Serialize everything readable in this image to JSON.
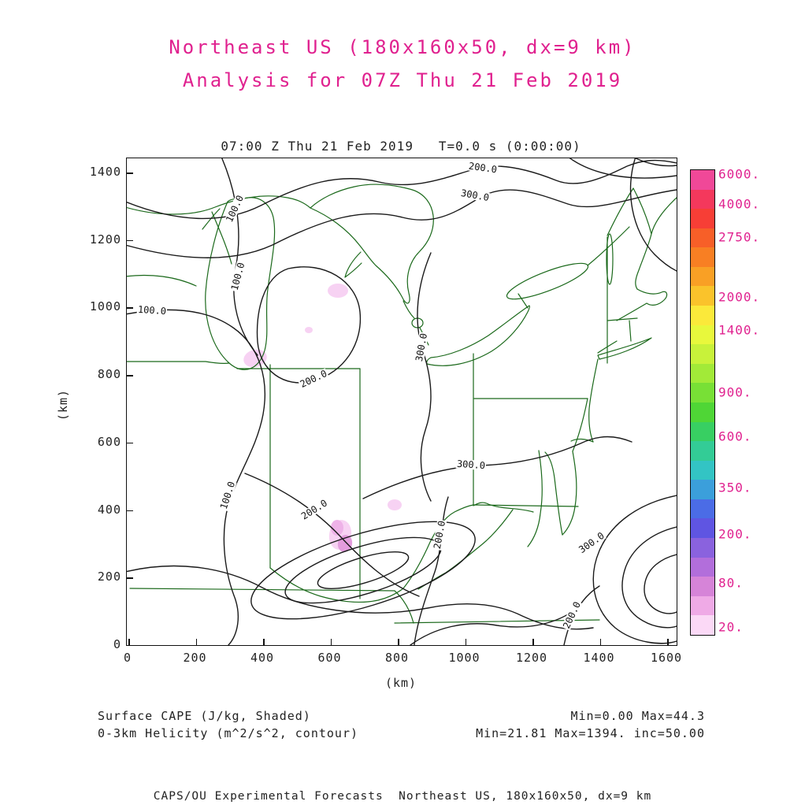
{
  "header": {
    "title_line1": "Northeast US (180x160x50, dx=9 km)",
    "title_line2": "Analysis for 07Z Thu 21 Feb 2019"
  },
  "plot": {
    "header": "07:00 Z Thu 21 Feb 2019   T=0.0 s (0:00:00)",
    "xlabel": "(km)",
    "ylabel": "(km)"
  },
  "captions": {
    "shaded": "Surface CAPE (J/kg, Shaded)",
    "contour": "0-3km Helicity (m^2/s^2, contour)",
    "shaded_stats": "Min=0.00 Max=44.3",
    "contour_stats": "Min=21.81 Max=1394. inc=50.00"
  },
  "footer": {
    "text": "CAPS/OU Experimental Forecasts  Northeast US, 180x160x50, dx=9 km"
  },
  "colors": {
    "title_magenta": "#e0218f",
    "map_outline_green": "#1b691b",
    "contour_black": "#1a1a1a",
    "cape_pale_pink": "#f7d2f3",
    "cape_pink": "#e39ddd"
  },
  "chart_data": {
    "type": "heatmap",
    "title": "07:00 Z Thu 21 Feb 2019   T=0.0 s (0:00:00)",
    "subtitle": "Northeast US (180x160x50, dx=9 km) Analysis for 07Z Thu 21 Feb 2019",
    "xlabel": "(km)",
    "ylabel": "(km)",
    "xlim": [
      0,
      1600
    ],
    "ylim": [
      0,
      1400
    ],
    "x_ticks": [
      0,
      200,
      400,
      600,
      800,
      1000,
      1200,
      1400,
      1600
    ],
    "y_ticks": [
      0,
      200,
      400,
      600,
      800,
      1000,
      1200,
      1400
    ],
    "grid": false,
    "shaded_field": {
      "name": "Surface CAPE",
      "units": "J/kg",
      "min": 0.0,
      "max": 44.3,
      "shading_levels_visible": [
        20,
        80
      ]
    },
    "contour_field": {
      "name": "0-3km Helicity",
      "units": "m^2/s^2",
      "min": 21.81,
      "max": 1394,
      "interval": 50.0,
      "labeled_levels": [
        100.0,
        200.0,
        300.0
      ]
    },
    "contour_labels": [
      {
        "text": "200.0",
        "x": 452,
        "y": 12,
        "rot": 8
      },
      {
        "text": "300.0",
        "x": 442,
        "y": 47,
        "rot": 10
      },
      {
        "text": "100.0",
        "x": 137,
        "y": 64,
        "rot": -65
      },
      {
        "text": "100.0",
        "x": 32,
        "y": 193,
        "rot": 4
      },
      {
        "text": "100.0",
        "x": 141,
        "y": 150,
        "rot": -75
      },
      {
        "text": "200.0",
        "x": 237,
        "y": 280,
        "rot": -25
      },
      {
        "text": "300.0",
        "x": 374,
        "y": 240,
        "rot": -80
      },
      {
        "text": "300.0",
        "x": 437,
        "y": 389,
        "rot": 4
      },
      {
        "text": "100.0",
        "x": 128,
        "y": 428,
        "rot": -72
      },
      {
        "text": "200.0",
        "x": 238,
        "y": 446,
        "rot": -32
      },
      {
        "text": "200.0",
        "x": 397,
        "y": 478,
        "rot": -80
      },
      {
        "text": "300.0",
        "x": 590,
        "y": 488,
        "rot": -35
      },
      {
        "text": "200.0",
        "x": 565,
        "y": 580,
        "rot": -65
      }
    ],
    "colorbar": {
      "labels": [
        "6000.",
        "4000.",
        "2750.",
        "2000.",
        "1400.",
        "900.",
        "600.",
        "350.",
        "200.",
        "80.",
        "20."
      ],
      "fractions": [
        0.01,
        0.075,
        0.145,
        0.275,
        0.345,
        0.48,
        0.575,
        0.685,
        0.785,
        0.89,
        0.985
      ],
      "colors": [
        "#f04898",
        "#f4385c",
        "#f73e36",
        "#f75f28",
        "#f87f23",
        "#f9a025",
        "#fac32b",
        "#fbe93a",
        "#e8f83c",
        "#c8f23a",
        "#a2ea38",
        "#78e036",
        "#4fd636",
        "#38cf62",
        "#33cc96",
        "#33c4c4",
        "#3b9fdb",
        "#4b6ce6",
        "#5f55e2",
        "#8a62de",
        "#b26edb",
        "#d684d8",
        "#efaae6",
        "#fbd9f6"
      ]
    }
  }
}
